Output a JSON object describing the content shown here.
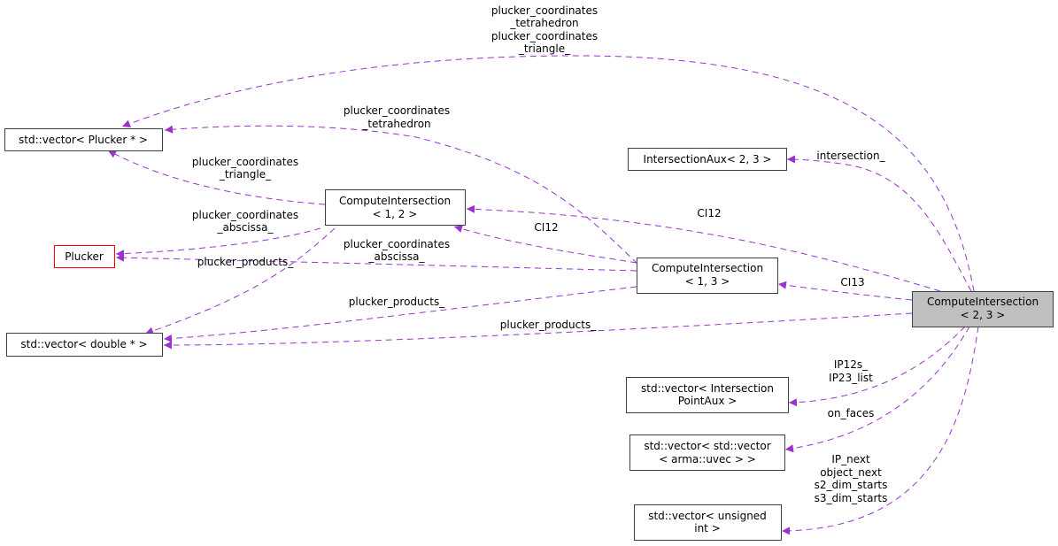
{
  "colors": {
    "edge": "#9a32cd",
    "focus_node_fill": "#bfbfbf",
    "undocumented_border": "#ff0000",
    "node_border": "#404040"
  },
  "nodes": {
    "vec_plucker": [
      "std::vector< Plucker * >"
    ],
    "intersection_aux": [
      "IntersectionAux< 2, 3 >"
    ],
    "ci12": [
      "ComputeIntersection",
      "< 1, 2 >"
    ],
    "plucker": [
      "Plucker"
    ],
    "ci13": [
      "ComputeIntersection",
      "< 1, 3 >"
    ],
    "ci23": [
      "ComputeIntersection",
      "< 2, 3 >"
    ],
    "vec_double": [
      "std::vector< double * >"
    ],
    "vec_ipa": [
      "std::vector< Intersection",
      "PointAux >"
    ],
    "vec_vec": [
      "std::vector< std::vector",
      "< arma::uvec > >"
    ],
    "vec_uns": [
      "std::vector< unsigned",
      "int >"
    ]
  },
  "edges": {
    "ci23_vec_plucker": [
      "plucker_coordinates",
      "_tetrahedron",
      "plucker_coordinates",
      "_triangle_"
    ],
    "ci13_vec_plucker": [
      "plucker_coordinates",
      "_tetrahedron"
    ],
    "ci12_vec_plucker": [
      "plucker_coordinates",
      "_triangle_"
    ],
    "ci12_plucker": [
      "plucker_coordinates",
      "_abscissa_"
    ],
    "ci13_plucker": [
      "plucker_coordinates",
      "_abscissa_"
    ],
    "ci12_vec_double": [
      "plucker_products_"
    ],
    "ci13_vec_double": [
      "plucker_products_"
    ],
    "ci23_vec_double": [
      "plucker_products_"
    ],
    "ci23_ci12": [
      "CI12"
    ],
    "ci13_ci12": [
      "CI12"
    ],
    "ci23_ci13": [
      "CI13"
    ],
    "ci23_intersection_aux": [
      "intersection_"
    ],
    "ci23_vec_ipa": [
      "IP12s_",
      "IP23_list"
    ],
    "ci23_vec_vec": [
      "on_faces"
    ],
    "ci23_vec_uns": [
      "IP_next",
      "object_next",
      "s2_dim_starts",
      "s3_dim_starts"
    ]
  }
}
